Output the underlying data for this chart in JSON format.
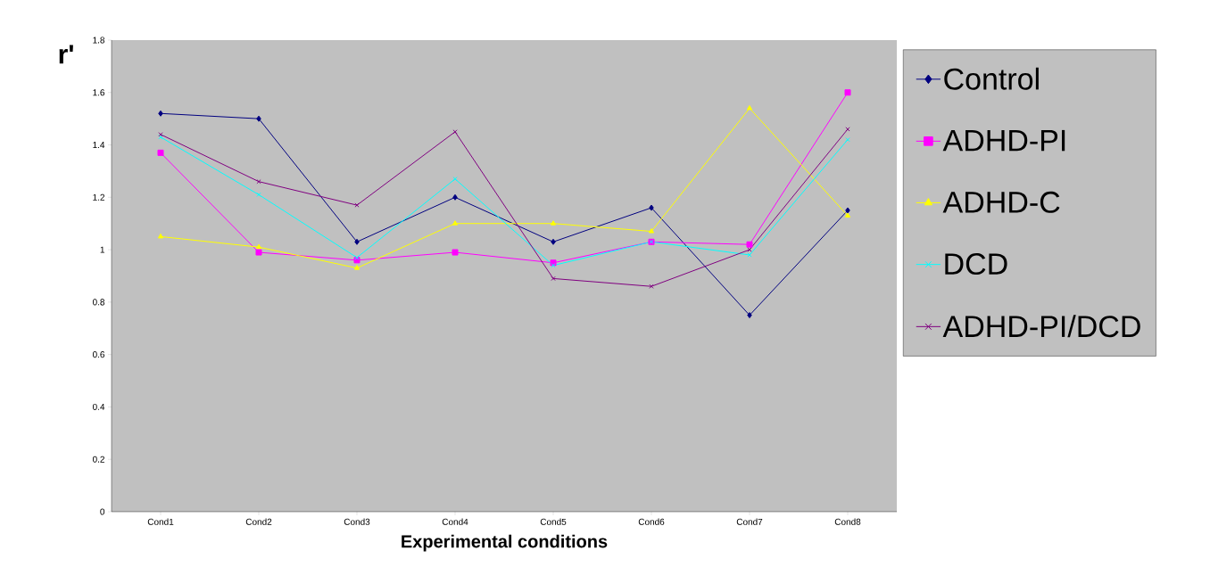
{
  "chart_data": {
    "type": "line",
    "xlabel": "Experimental conditions",
    "ylabel": "r'",
    "categories": [
      "Cond1",
      "Cond2",
      "Cond3",
      "Cond4",
      "Cond5",
      "Cond6",
      "Cond7",
      "Cond8"
    ],
    "series": [
      {
        "name": "Control",
        "color": "#000080",
        "marker": "diamond",
        "values": [
          1.52,
          1.5,
          1.03,
          1.2,
          1.03,
          1.16,
          0.75,
          1.15
        ]
      },
      {
        "name": "ADHD-PI",
        "color": "#ff00ff",
        "marker": "square",
        "values": [
          1.37,
          0.99,
          0.96,
          0.99,
          0.95,
          1.03,
          1.02,
          1.6
        ]
      },
      {
        "name": "ADHD-C",
        "color": "#ffff00",
        "marker": "triangle",
        "values": [
          1.05,
          1.01,
          0.93,
          1.1,
          1.1,
          1.07,
          1.54,
          1.13
        ]
      },
      {
        "name": "DCD",
        "color": "#00ffff",
        "marker": "cross",
        "values": [
          1.43,
          1.21,
          0.97,
          1.27,
          0.94,
          1.03,
          0.98,
          1.42
        ]
      },
      {
        "name": "ADHD-PI/DCD",
        "color": "#800080",
        "marker": "cross",
        "values": [
          1.44,
          1.26,
          1.17,
          1.45,
          0.89,
          0.86,
          1.0,
          1.46
        ]
      }
    ],
    "ylim": [
      0,
      1.8
    ],
    "yticks": [
      0,
      0.2,
      0.4,
      0.6,
      0.8,
      1,
      1.2,
      1.4,
      1.6,
      1.8
    ],
    "grid": false,
    "legend": "right",
    "line_style": "solid"
  }
}
